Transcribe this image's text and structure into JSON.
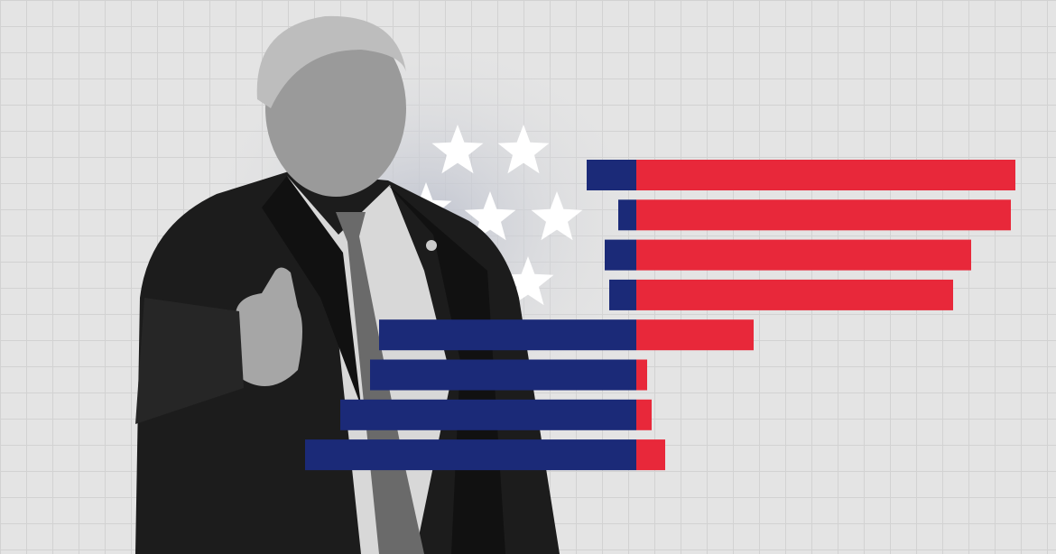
{
  "illustration": {
    "colors": {
      "background": "#e4e4e4",
      "blue": "#1b2a78",
      "red": "#e8283a",
      "star": "#ffffff",
      "suit": "#1c1c1c",
      "skin": "#9a9a9a",
      "shirt": "#d8d8d8",
      "tie": "#6a6a6a"
    },
    "icons": [
      "star-icon"
    ],
    "bar_count": 8
  }
}
